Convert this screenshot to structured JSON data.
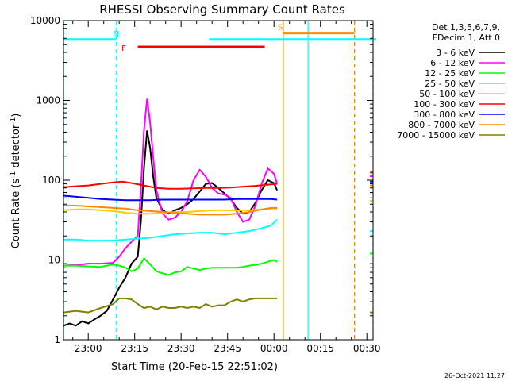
{
  "chart_data": {
    "type": "line",
    "title": "RHESSI Observing Summary Count Rates",
    "xlabel": "Start Time (20-Feb-15 22:51:02)",
    "ylabel": "Count Rate (s⁻¹ detector⁻¹)",
    "ylabel_parts": {
      "main": "Count Rate (s",
      "sup1": "-1",
      "mid": " detector",
      "sup2": "-1",
      "end": ")"
    },
    "y_scale": "log",
    "ylim": [
      1,
      10000
    ],
    "xlim_minutes": [
      -8,
      32
    ],
    "x_unit": "minutes relative to 23:00 on 20-Feb-15",
    "y_ticks": [
      {
        "v": 1,
        "label": "1"
      },
      {
        "v": 10,
        "label": "10"
      },
      {
        "v": 100,
        "label": "100"
      },
      {
        "v": 1000,
        "label": "1000"
      },
      {
        "v": 10000,
        "label": "10000"
      }
    ],
    "x_ticks": [
      {
        "m": 0,
        "label": "23:00"
      },
      {
        "m": 15,
        "label": "23:15"
      },
      {
        "m": 30,
        "label": "23:30"
      },
      {
        "m": 45,
        "label": "23:45"
      },
      {
        "m": 60,
        "label": "00:00"
      },
      {
        "m": 75,
        "label": "00:15"
      },
      {
        "m": 90,
        "label": "00:30"
      }
    ],
    "legend_header": [
      "Det 1,3,5,6,7,9,",
      "FDecim 1, Att 0"
    ],
    "legend_position": "right",
    "series": [
      {
        "name": "3 - 6 keV",
        "color": "#000000",
        "points": [
          [
            -8,
            1.5
          ],
          [
            -6,
            1.6
          ],
          [
            -4,
            1.5
          ],
          [
            -2,
            1.7
          ],
          [
            0,
            1.6
          ],
          [
            2,
            1.8
          ],
          [
            4,
            2.0
          ],
          [
            6,
            2.3
          ],
          [
            8,
            3.2
          ],
          [
            10,
            4.5
          ],
          [
            12,
            6.0
          ],
          [
            14,
            9.0
          ],
          [
            16,
            11.0
          ],
          [
            17,
            30
          ],
          [
            18,
            140
          ],
          [
            19,
            420
          ],
          [
            20,
            250
          ],
          [
            21,
            110
          ],
          [
            22,
            60
          ],
          [
            24,
            42
          ],
          [
            26,
            38
          ],
          [
            28,
            42
          ],
          [
            30,
            45
          ],
          [
            32,
            50
          ],
          [
            34,
            58
          ],
          [
            36,
            72
          ],
          [
            38,
            90
          ],
          [
            40,
            92
          ],
          [
            42,
            80
          ],
          [
            44,
            68
          ],
          [
            46,
            58
          ],
          [
            48,
            45
          ],
          [
            50,
            38
          ],
          [
            52,
            40
          ],
          [
            54,
            52
          ],
          [
            56,
            75
          ],
          [
            58,
            100
          ],
          [
            60,
            92
          ],
          [
            61,
            75
          ]
        ]
      },
      {
        "name": "6 - 12 keV",
        "color": "#ff00ff",
        "points": [
          [
            -8,
            8.5
          ],
          [
            -4,
            8.7
          ],
          [
            0,
            9.0
          ],
          [
            4,
            9.0
          ],
          [
            8,
            9.2
          ],
          [
            10,
            11
          ],
          [
            12,
            14
          ],
          [
            14,
            17
          ],
          [
            16,
            20
          ],
          [
            17,
            80
          ],
          [
            18,
            420
          ],
          [
            19,
            1050
          ],
          [
            20,
            520
          ],
          [
            21,
            190
          ],
          [
            22,
            75
          ],
          [
            24,
            38
          ],
          [
            26,
            32
          ],
          [
            28,
            34
          ],
          [
            30,
            40
          ],
          [
            32,
            55
          ],
          [
            34,
            100
          ],
          [
            36,
            135
          ],
          [
            38,
            110
          ],
          [
            40,
            80
          ],
          [
            42,
            68
          ],
          [
            44,
            66
          ],
          [
            46,
            60
          ],
          [
            48,
            40
          ],
          [
            50,
            30
          ],
          [
            52,
            32
          ],
          [
            54,
            48
          ],
          [
            56,
            90
          ],
          [
            58,
            140
          ],
          [
            60,
            120
          ],
          [
            61,
            90
          ],
          [
            91,
            112
          ],
          [
            93,
            112
          ]
        ]
      },
      {
        "name": "12 - 25 keV",
        "color": "#00ff00",
        "points": [
          [
            -8,
            8.5
          ],
          [
            -4,
            8.5
          ],
          [
            0,
            8.3
          ],
          [
            4,
            8.2
          ],
          [
            8,
            8.8
          ],
          [
            10,
            8.5
          ],
          [
            12,
            8.0
          ],
          [
            14,
            7.2
          ],
          [
            16,
            7.8
          ],
          [
            18,
            10.5
          ],
          [
            20,
            8.8
          ],
          [
            22,
            7.2
          ],
          [
            24,
            6.8
          ],
          [
            26,
            6.5
          ],
          [
            28,
            7.0
          ],
          [
            30,
            7.2
          ],
          [
            32,
            8.2
          ],
          [
            34,
            7.8
          ],
          [
            36,
            7.5
          ],
          [
            38,
            7.8
          ],
          [
            40,
            8.0
          ],
          [
            42,
            8.0
          ],
          [
            44,
            8.0
          ],
          [
            46,
            8.0
          ],
          [
            48,
            8.0
          ],
          [
            50,
            8.2
          ],
          [
            52,
            8.5
          ],
          [
            54,
            8.7
          ],
          [
            56,
            9.0
          ],
          [
            58,
            9.5
          ],
          [
            60,
            10
          ],
          [
            61,
            9.5
          ],
          [
            91,
            12
          ],
          [
            93,
            12
          ]
        ]
      },
      {
        "name": "25 - 50 keV",
        "color": "#00ffff",
        "points": [
          [
            -8,
            18
          ],
          [
            -4,
            18
          ],
          [
            0,
            17.5
          ],
          [
            4,
            17.5
          ],
          [
            8,
            17.5
          ],
          [
            12,
            18
          ],
          [
            16,
            18.5
          ],
          [
            20,
            19
          ],
          [
            24,
            20
          ],
          [
            28,
            21
          ],
          [
            32,
            21.5
          ],
          [
            36,
            22
          ],
          [
            40,
            22
          ],
          [
            44,
            21
          ],
          [
            48,
            22
          ],
          [
            52,
            23
          ],
          [
            56,
            25
          ],
          [
            59,
            27
          ],
          [
            61,
            32
          ],
          [
            91,
            23
          ],
          [
            93,
            23
          ]
        ]
      },
      {
        "name": "50 - 100 keV",
        "color": "#ffcc00",
        "points": [
          [
            -8,
            42
          ],
          [
            -4,
            43
          ],
          [
            0,
            43
          ],
          [
            4,
            42
          ],
          [
            8,
            41
          ],
          [
            12,
            39
          ],
          [
            16,
            38
          ],
          [
            20,
            38
          ],
          [
            24,
            39
          ],
          [
            28,
            40
          ],
          [
            32,
            40
          ],
          [
            36,
            41
          ],
          [
            40,
            42
          ],
          [
            44,
            42
          ],
          [
            48,
            42
          ],
          [
            52,
            42
          ],
          [
            56,
            43
          ],
          [
            59,
            44
          ],
          [
            61,
            44
          ],
          [
            91,
            55
          ],
          [
            93,
            55
          ]
        ]
      },
      {
        "name": "100 - 300 keV",
        "color": "#ff0000",
        "points": [
          [
            -8,
            82
          ],
          [
            -4,
            84
          ],
          [
            0,
            86
          ],
          [
            4,
            90
          ],
          [
            8,
            94
          ],
          [
            11,
            96
          ],
          [
            14,
            92
          ],
          [
            18,
            86
          ],
          [
            22,
            80
          ],
          [
            26,
            78
          ],
          [
            30,
            78
          ],
          [
            34,
            79
          ],
          [
            38,
            80
          ],
          [
            42,
            80
          ],
          [
            46,
            81
          ],
          [
            50,
            83
          ],
          [
            54,
            85
          ],
          [
            58,
            88
          ],
          [
            61,
            90
          ],
          [
            91,
            125
          ],
          [
            93,
            125
          ]
        ]
      },
      {
        "name": "300 - 800 keV",
        "color": "#0000ff",
        "points": [
          [
            -8,
            64
          ],
          [
            -4,
            62
          ],
          [
            0,
            60
          ],
          [
            4,
            58
          ],
          [
            8,
            57
          ],
          [
            12,
            56
          ],
          [
            16,
            56
          ],
          [
            20,
            56
          ],
          [
            24,
            57
          ],
          [
            28,
            57
          ],
          [
            32,
            57
          ],
          [
            36,
            57
          ],
          [
            40,
            57
          ],
          [
            44,
            57
          ],
          [
            48,
            58
          ],
          [
            52,
            58
          ],
          [
            56,
            58
          ],
          [
            59,
            58
          ],
          [
            61,
            57
          ],
          [
            91,
            96
          ],
          [
            93,
            96
          ]
        ]
      },
      {
        "name": "800 - 7000 keV",
        "color": "#ff8800",
        "points": [
          [
            -8,
            48
          ],
          [
            -4,
            48
          ],
          [
            0,
            47
          ],
          [
            4,
            46
          ],
          [
            8,
            45
          ],
          [
            12,
            44
          ],
          [
            16,
            42
          ],
          [
            20,
            41
          ],
          [
            24,
            40
          ],
          [
            28,
            39
          ],
          [
            32,
            38
          ],
          [
            36,
            37
          ],
          [
            40,
            37
          ],
          [
            44,
            37
          ],
          [
            48,
            38
          ],
          [
            52,
            40
          ],
          [
            56,
            43
          ],
          [
            59,
            45
          ],
          [
            61,
            45
          ],
          [
            91,
            86
          ],
          [
            93,
            86
          ]
        ]
      },
      {
        "name": "7000 - 15000 keV",
        "color": "#808000",
        "points": [
          [
            -8,
            2.2
          ],
          [
            -4,
            2.3
          ],
          [
            0,
            2.2
          ],
          [
            4,
            2.5
          ],
          [
            8,
            2.8
          ],
          [
            10,
            3.3
          ],
          [
            12,
            3.3
          ],
          [
            14,
            3.2
          ],
          [
            16,
            2.8
          ],
          [
            18,
            2.5
          ],
          [
            20,
            2.6
          ],
          [
            22,
            2.4
          ],
          [
            24,
            2.6
          ],
          [
            26,
            2.5
          ],
          [
            28,
            2.5
          ],
          [
            30,
            2.6
          ],
          [
            32,
            2.5
          ],
          [
            34,
            2.6
          ],
          [
            36,
            2.5
          ],
          [
            38,
            2.8
          ],
          [
            40,
            2.6
          ],
          [
            42,
            2.7
          ],
          [
            44,
            2.7
          ],
          [
            46,
            3.0
          ],
          [
            48,
            3.2
          ],
          [
            50,
            3.0
          ],
          [
            52,
            3.2
          ],
          [
            54,
            3.3
          ],
          [
            56,
            3.3
          ],
          [
            58,
            3.3
          ],
          [
            61,
            3.3
          ],
          [
            91,
            2.2
          ],
          [
            93,
            2.2
          ]
        ]
      }
    ],
    "flag_bars": [
      {
        "label": "",
        "color": "#00ffff",
        "y": 5800,
        "segments": [
          [
            -8,
            9
          ],
          [
            39,
            93
          ]
        ],
        "label_at": null
      },
      {
        "label": "N",
        "color": "#00ffff",
        "y": 5800,
        "segments": [],
        "label_at": 9
      },
      {
        "label": "F",
        "color": "#ff0000",
        "y": 4700,
        "segments": [
          [
            16,
            57
          ]
        ],
        "label_at": 11.5
      },
      {
        "label": "S",
        "color": "#ff8800",
        "y": 7000,
        "segments": [
          [
            63,
            86
          ]
        ],
        "label_at": 62
      }
    ],
    "vertical_lines": [
      {
        "m": -8,
        "color": "#00ffff",
        "style": "solid"
      },
      {
        "m": 9,
        "color": "#00ffff",
        "style": "dashed"
      },
      {
        "m": 63,
        "color": "#ff8800",
        "style": "solid"
      },
      {
        "m": 71,
        "color": "#00ffff",
        "style": "solid"
      },
      {
        "m": 86,
        "color": "#ff8800",
        "style": "dashed"
      },
      {
        "m": 92,
        "color": "#00ffff",
        "style": "dashed"
      }
    ],
    "timestamp": "26-Oct-2021 11:27"
  }
}
